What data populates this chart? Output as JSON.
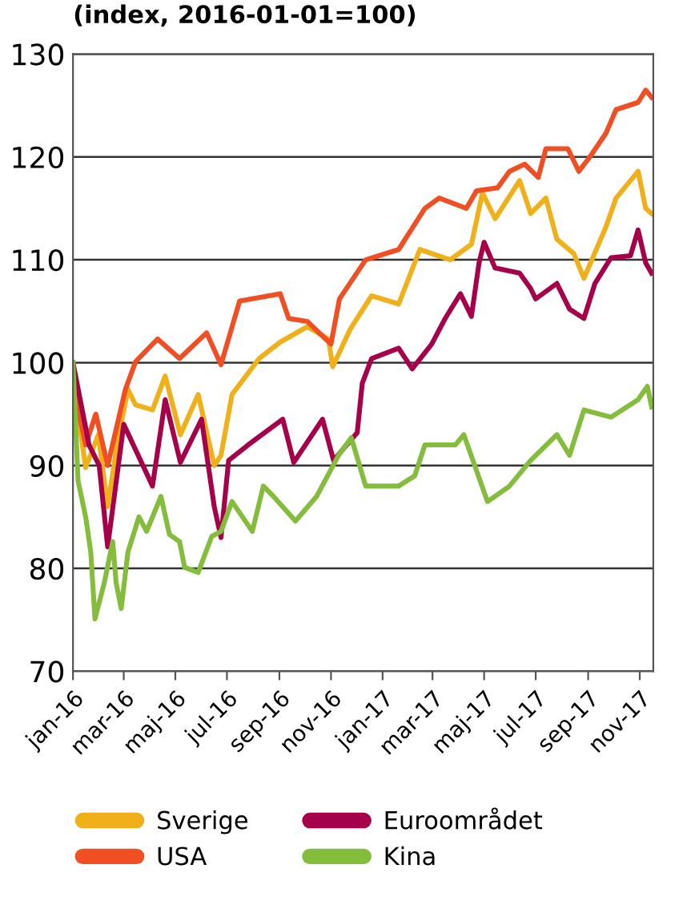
{
  "chart_data": {
    "type": "line",
    "title": "(index, 2016-01-01=100)",
    "xlim": [
      "2016-01-01",
      "2017-11-17"
    ],
    "xticks": [
      {
        "value": "2016-01-01",
        "label": "jan-16"
      },
      {
        "value": "2016-03-01",
        "label": "mar-16"
      },
      {
        "value": "2016-05-01",
        "label": "maj-16"
      },
      {
        "value": "2016-07-01",
        "label": "jul-16"
      },
      {
        "value": "2016-09-01",
        "label": "sep-16"
      },
      {
        "value": "2016-11-01",
        "label": "nov-16"
      },
      {
        "value": "2017-01-01",
        "label": "jan-17"
      },
      {
        "value": "2017-03-01",
        "label": "mar-17"
      },
      {
        "value": "2017-05-01",
        "label": "maj-17"
      },
      {
        "value": "2017-07-01",
        "label": "jul-17"
      },
      {
        "value": "2017-09-01",
        "label": "sep-17"
      },
      {
        "value": "2017-11-01",
        "label": "nov-17"
      }
    ],
    "ylim": [
      70,
      130
    ],
    "yticks": [
      70,
      80,
      90,
      100,
      110,
      120,
      130
    ],
    "grid": "y",
    "legend": "bottom",
    "marker": "none",
    "line_style": "solid",
    "series": [
      {
        "name": "Sverige",
        "color": "#f0b01a",
        "x": [
          "2016-01-01",
          "2016-01-07",
          "2016-01-16",
          "2016-01-31",
          "2016-02-11",
          "2016-02-23",
          "2016-03-06",
          "2016-03-15",
          "2016-04-04",
          "2016-04-19",
          "2016-05-07",
          "2016-05-28",
          "2016-06-16",
          "2016-06-24",
          "2016-07-07",
          "2016-08-08",
          "2016-09-02",
          "2016-10-04",
          "2016-10-29",
          "2016-11-03",
          "2016-11-24",
          "2016-12-19",
          "2017-01-20",
          "2017-02-14",
          "2017-03-22",
          "2017-04-16",
          "2017-04-29",
          "2017-05-14",
          "2017-06-12",
          "2017-06-25",
          "2017-07-13",
          "2017-07-26",
          "2017-08-15",
          "2017-08-27",
          "2017-09-22",
          "2017-10-04",
          "2017-10-30",
          "2017-11-08",
          "2017-11-15"
        ],
        "values": [
          100,
          95,
          89.8,
          93,
          86,
          92.5,
          97.4,
          95.9,
          95.4,
          98.7,
          93,
          96.9,
          90,
          91,
          96.9,
          100.4,
          102,
          103.5,
          102.3,
          99.6,
          103.3,
          106.5,
          105.7,
          111,
          110,
          111.5,
          116.5,
          114,
          117.7,
          114.5,
          116,
          112,
          110.6,
          108.2,
          113.2,
          116,
          118.6,
          115,
          114.5
        ]
      },
      {
        "name": "USA",
        "color": "#f04e23",
        "x": [
          "2016-01-01",
          "2016-01-07",
          "2016-01-16",
          "2016-01-28",
          "2016-02-11",
          "2016-03-03",
          "2016-03-15",
          "2016-04-10",
          "2016-05-06",
          "2016-06-07",
          "2016-06-24",
          "2016-07-16",
          "2016-09-02",
          "2016-09-12",
          "2016-10-04",
          "2016-11-01",
          "2016-11-11",
          "2016-12-12",
          "2017-01-20",
          "2017-02-20",
          "2017-03-09",
          "2017-04-10",
          "2017-04-22",
          "2017-05-17",
          "2017-05-31",
          "2017-06-18",
          "2017-07-04",
          "2017-07-13",
          "2017-08-08",
          "2017-08-21",
          "2017-09-03",
          "2017-09-22",
          "2017-10-04",
          "2017-10-30",
          "2017-11-08",
          "2017-11-15"
        ],
        "values": [
          100,
          95.4,
          92,
          95,
          90,
          97.4,
          100.1,
          102.3,
          100.4,
          102.9,
          99.8,
          106,
          106.7,
          104.3,
          104,
          101.8,
          106.2,
          110,
          111,
          115,
          116,
          115,
          116.7,
          117,
          118.6,
          119.3,
          118,
          120.8,
          120.8,
          118.6,
          120,
          122.3,
          124.6,
          125.3,
          126.5,
          125.8
        ]
      },
      {
        "name": "Euroområdet",
        "color": "#a6004a",
        "x": [
          "2016-01-01",
          "2016-01-20",
          "2016-02-01",
          "2016-02-11",
          "2016-03-01",
          "2016-04-04",
          "2016-04-19",
          "2016-05-07",
          "2016-06-01",
          "2016-06-16",
          "2016-06-24",
          "2016-07-03",
          "2016-07-26",
          "2016-09-05",
          "2016-09-18",
          "2016-10-22",
          "2016-11-04",
          "2016-12-02",
          "2016-12-08",
          "2016-12-19",
          "2017-01-20",
          "2017-02-05",
          "2017-02-28",
          "2017-03-16",
          "2017-04-03",
          "2017-04-16",
          "2017-04-25",
          "2017-05-01",
          "2017-05-14",
          "2017-06-12",
          "2017-06-25",
          "2017-07-01",
          "2017-07-26",
          "2017-08-10",
          "2017-08-27",
          "2017-09-09",
          "2017-09-28",
          "2017-10-21",
          "2017-10-30",
          "2017-11-08",
          "2017-11-15"
        ],
        "values": [
          100,
          92,
          90,
          82.1,
          94,
          88,
          96.4,
          90.3,
          94.5,
          86,
          83,
          90.5,
          92,
          94.5,
          90.3,
          94.5,
          90.5,
          93.2,
          98,
          100.4,
          101.4,
          99.4,
          101.8,
          104.3,
          106.7,
          104.5,
          109.7,
          111.7,
          109.2,
          108.7,
          107.2,
          106.2,
          107.7,
          105.2,
          104.3,
          107.7,
          110.2,
          110.4,
          112.9,
          109.7,
          108.7
        ]
      },
      {
        "name": "Kina",
        "color": "#84bd3c",
        "x": [
          "2016-01-01",
          "2016-01-07",
          "2016-01-16",
          "2016-01-22",
          "2016-01-27",
          "2016-02-07",
          "2016-02-17",
          "2016-02-21",
          "2016-02-27",
          "2016-03-06",
          "2016-03-19",
          "2016-03-28",
          "2016-04-14",
          "2016-04-24",
          "2016-05-06",
          "2016-05-12",
          "2016-05-28",
          "2016-06-13",
          "2016-06-24",
          "2016-07-07",
          "2016-07-31",
          "2016-08-13",
          "2016-08-25",
          "2016-09-20",
          "2016-10-15",
          "2016-11-10",
          "2016-11-25",
          "2016-12-12",
          "2017-01-20",
          "2017-02-08",
          "2017-02-20",
          "2017-03-28",
          "2017-04-07",
          "2017-05-05",
          "2017-05-31",
          "2017-06-25",
          "2017-07-26",
          "2017-08-10",
          "2017-08-27",
          "2017-09-28",
          "2017-10-30",
          "2017-11-10",
          "2017-11-15"
        ],
        "values": [
          100,
          88.5,
          85,
          81.6,
          75.1,
          78.6,
          82.6,
          78.6,
          76.1,
          81.6,
          85,
          83.6,
          87,
          83.3,
          82.6,
          80.1,
          79.6,
          83.1,
          83.6,
          86.5,
          83.6,
          88,
          87,
          84.6,
          87,
          91,
          92.7,
          88,
          88,
          89,
          92,
          92,
          93,
          86.5,
          88,
          90.5,
          93,
          91,
          95.4,
          94.7,
          96.4,
          97.7,
          95.7
        ]
      }
    ]
  }
}
